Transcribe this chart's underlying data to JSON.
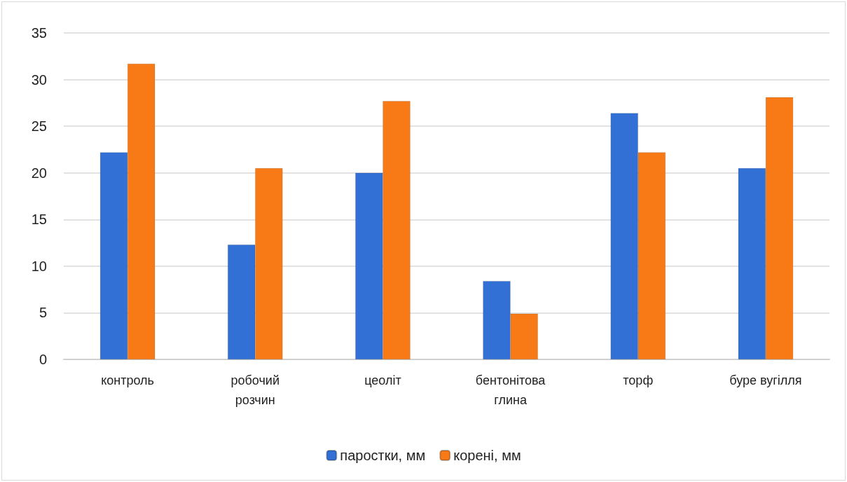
{
  "chart_data": {
    "type": "bar",
    "categories": [
      "контроль",
      "робочий\nрозчин",
      "цеоліт",
      "бентонітова\nглина",
      "торф",
      "буре вугілля"
    ],
    "series": [
      {
        "name": "паростки, мм",
        "color": "#3370d6",
        "values": [
          22.2,
          12.3,
          20.0,
          8.4,
          26.4,
          20.5
        ]
      },
      {
        "name": "корені, мм",
        "color": "#f77a16",
        "values": [
          31.7,
          20.5,
          27.7,
          4.9,
          22.2,
          28.1
        ]
      }
    ],
    "ylim": [
      0,
      35
    ],
    "yticks": [
      0,
      5,
      10,
      15,
      20,
      25,
      30,
      35
    ],
    "grid": "y",
    "legend": "bottom"
  }
}
